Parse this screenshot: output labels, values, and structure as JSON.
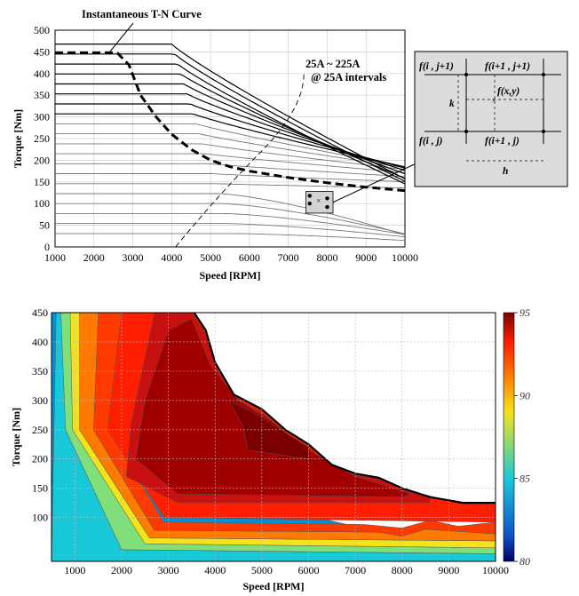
{
  "chart_data": [
    {
      "type": "line",
      "xlabel": "Speed [RPM]",
      "ylabel": "Torque [Nm]",
      "xlim": [
        1000,
        10000
      ],
      "ylim": [
        0,
        500
      ],
      "x_ticks": [
        "1000",
        "2000",
        "3000",
        "4000",
        "5000",
        "6000",
        "7000",
        "8000",
        "9000",
        "10000"
      ],
      "y_ticks": [
        "0",
        "50",
        "100",
        "150",
        "200",
        "250",
        "300",
        "350",
        "400",
        "450",
        "500"
      ],
      "grid": true,
      "current_labels": [
        "25A ~ 225A",
        "@ 25A intervals"
      ],
      "tn_curve_label": "Instantaneous T-N Curve",
      "tn_curve": {
        "x": [
          1000,
          2600,
          2900,
          3200,
          3600,
          4000,
          4500,
          5000,
          5500,
          6000,
          7000,
          8000,
          9000,
          10000
        ],
        "y": [
          448,
          448,
          420,
          350,
          300,
          260,
          225,
          200,
          185,
          175,
          160,
          148,
          138,
          130
        ]
      },
      "inset_labels": {
        "top_left": "f(i , j+1)",
        "top_right": "f(i+1 , j+1)",
        "center": "f(x,y)",
        "bottom_left": "f(i , j)",
        "bottom_right": "f(i+1 , j)",
        "vertical_step": "k",
        "horizontal_step": "h"
      }
    },
    {
      "type": "heatmap",
      "xlabel": "Speed [RPM]",
      "ylabel": "Torque [Nm]",
      "xlim": [
        500,
        10000
      ],
      "ylim": [
        25,
        450
      ],
      "x_ticks": [
        "1000",
        "2000",
        "3000",
        "4000",
        "5000",
        "6000",
        "7000",
        "8000",
        "9000",
        "10000"
      ],
      "y_ticks": [
        "100",
        "150",
        "200",
        "250",
        "300",
        "350",
        "400",
        "450"
      ],
      "colorbar_ticks": [
        "95",
        "90",
        "85",
        "80"
      ],
      "colorbar_range": [
        80,
        95
      ],
      "grid": true
    }
  ],
  "colors": {
    "dark_red": "#7a0000",
    "deep_red": "#a00000",
    "red": "#c81010",
    "bright_red": "#ff1e00",
    "orange": "#ff7a00",
    "yellow": "#f4e21a",
    "cyan": "#19c8d8",
    "blue": "#1050c8",
    "navy": "#000064"
  }
}
